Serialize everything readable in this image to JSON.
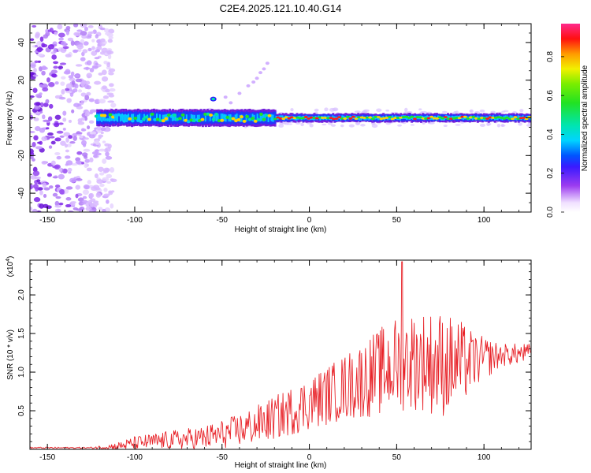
{
  "title": "C2E4.2025.121.10.40.G14",
  "chart_data": [
    {
      "type": "heatmap",
      "xlabel": "Height of straight line (km)",
      "ylabel": "Frequency (Hz)",
      "xlim": [
        -160,
        127
      ],
      "ylim": [
        -50,
        50
      ],
      "xticks": [
        -150,
        -100,
        -50,
        0,
        50,
        100
      ],
      "yticks": [
        -40,
        -20,
        0,
        20,
        40
      ],
      "colorbar": {
        "label": "Normalized spectral amplitude",
        "range": [
          0,
          0.97
        ],
        "ticks": [
          0.0,
          0.2,
          0.4,
          0.6,
          0.8
        ],
        "colormap": "rainbow (white-violet-blue-cyan-green-yellow-red-magenta)"
      },
      "features": {
        "noise_region_x": [
          -160,
          -112
        ],
        "signal_band_freq": 0,
        "strong_band_x": [
          -22,
          127
        ]
      },
      "grid": false
    },
    {
      "type": "line",
      "xlabel": "Height of straight line (km)",
      "ylabel": "SNR (10 * v/v)",
      "y_multiplier": "(x10",
      "y_multiplier_exp": "4",
      "xlim": [
        -160,
        127
      ],
      "ylim": [
        0,
        2.45
      ],
      "xticks": [
        -150,
        -100,
        -50,
        0,
        50,
        100
      ],
      "yticks": [
        0.5,
        1.0,
        1.5,
        2.0
      ],
      "color": "#e8242a",
      "envelope": {
        "x": [
          -160,
          -125,
          -110,
          -100,
          -80,
          -60,
          -45,
          -30,
          -15,
          0,
          15,
          30,
          45,
          55,
          65,
          75,
          85,
          95,
          110,
          127
        ],
        "mean": [
          0.02,
          0.02,
          0.04,
          0.08,
          0.12,
          0.15,
          0.22,
          0.32,
          0.45,
          0.6,
          0.75,
          0.9,
          1.05,
          1.15,
          1.15,
          1.1,
          1.1,
          1.15,
          1.22,
          1.25
        ],
        "amp": [
          0.01,
          0.01,
          0.05,
          0.09,
          0.12,
          0.16,
          0.2,
          0.25,
          0.3,
          0.35,
          0.4,
          0.5,
          0.6,
          0.65,
          0.65,
          0.7,
          0.6,
          0.35,
          0.15,
          0.12
        ]
      },
      "peak": {
        "x": 53,
        "y": 2.43
      },
      "grid": false
    }
  ]
}
